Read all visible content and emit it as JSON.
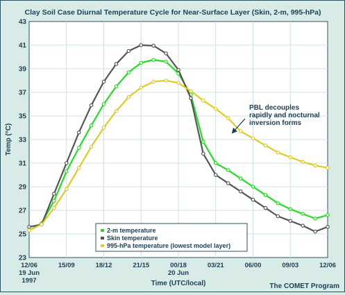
{
  "chart_data": {
    "type": "line",
    "title": "Clay Soil Case Diurnal Temperature Cycle for Near-Surface Layer (Skin, 2-m, 995-hPa)",
    "xlabel": "Time (UTC/local)",
    "ylabel": "Temp (°C)",
    "ylim": [
      23,
      43
    ],
    "yticks": [
      23,
      25,
      27,
      29,
      31,
      33,
      35,
      37,
      39,
      41,
      43
    ],
    "xlim": [
      0,
      24
    ],
    "xtick_labels": [
      {
        "x": 0,
        "lines": [
          "12/06",
          "19 Jun",
          "1997"
        ]
      },
      {
        "x": 3,
        "lines": [
          "15/09"
        ]
      },
      {
        "x": 6,
        "lines": [
          "18/12"
        ]
      },
      {
        "x": 9,
        "lines": [
          "21/15"
        ]
      },
      {
        "x": 12,
        "lines": [
          "00/18",
          "20 Jun"
        ]
      },
      {
        "x": 15,
        "lines": [
          "03/21"
        ]
      },
      {
        "x": 18,
        "lines": [
          "06/00"
        ]
      },
      {
        "x": 21,
        "lines": [
          "09/03"
        ]
      },
      {
        "x": 24,
        "lines": [
          "12/06"
        ]
      }
    ],
    "grid": true,
    "legend": "bottom-left",
    "x": [
      0,
      1,
      2,
      3,
      4,
      5,
      6,
      7,
      8,
      9,
      10,
      11,
      12,
      13,
      14,
      15,
      16,
      17,
      18,
      19,
      20,
      21,
      22,
      23,
      24
    ],
    "series": [
      {
        "name": "2-m temperature",
        "color": "#22dd22",
        "values": [
          25.3,
          25.9,
          27.8,
          30.3,
          32.3,
          34.2,
          36.0,
          37.5,
          38.7,
          39.5,
          39.75,
          39.6,
          38.6,
          36.8,
          32.8,
          31.0,
          30.4,
          29.7,
          29.0,
          28.3,
          27.6,
          27.1,
          26.7,
          26.3,
          26.6
        ]
      },
      {
        "name": "Skin temperature",
        "color": "#555555",
        "values": [
          25.6,
          25.8,
          28.4,
          31.0,
          33.6,
          35.9,
          37.9,
          39.4,
          40.5,
          41.0,
          40.95,
          40.3,
          38.9,
          36.5,
          31.8,
          30.0,
          29.3,
          28.6,
          27.9,
          27.2,
          26.5,
          26.1,
          25.7,
          25.2,
          25.6
        ]
      },
      {
        "name": "995-hPa temperature (lowest model layer)",
        "color": "#ddcc22",
        "values": [
          25.3,
          25.8,
          27.2,
          28.8,
          30.6,
          32.4,
          34.0,
          35.4,
          36.6,
          37.4,
          37.9,
          38.0,
          37.8,
          37.1,
          36.3,
          35.6,
          34.8,
          33.7,
          33.1,
          32.5,
          31.9,
          31.5,
          31.1,
          30.8,
          30.6
        ]
      }
    ],
    "annotation": {
      "lines": [
        "PBL decouples",
        "rapidly and nocturnal",
        "inversion forms"
      ]
    },
    "credit": "The COMET Program"
  }
}
